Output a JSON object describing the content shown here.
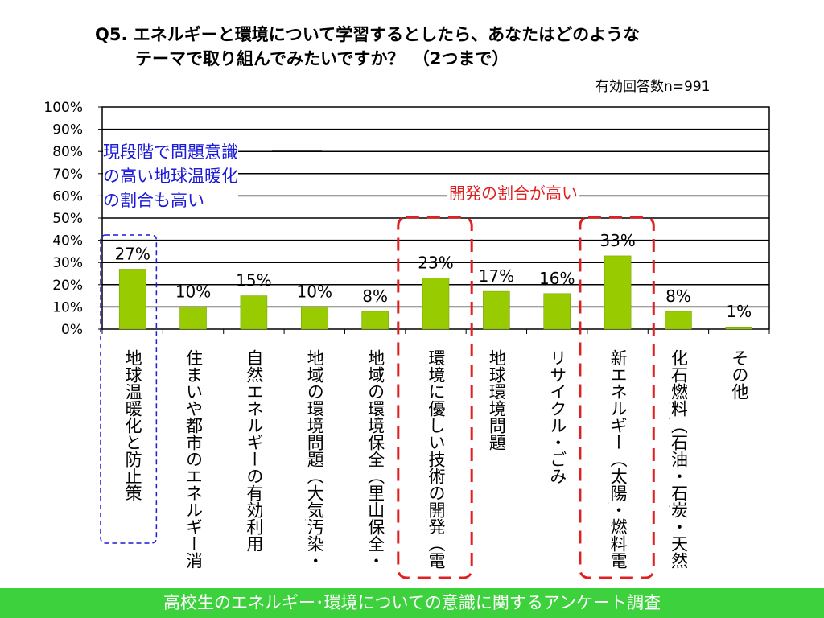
{
  "title_line1": "Q5. エネルギーと環境について学習するとしたら、あなたはどのような",
  "title_line2": "テーマで取り組んでみたいですか？　（2つまで）",
  "sample_size": "有効回答数n=991",
  "annotation_blue": [
    "現段階で問題意識",
    "の高い地球温暖化",
    "の割合も高い"
  ],
  "annotation_red": "開発の割合が高い",
  "footer": "高校生のエネルギー･環境についての意識に関するアンケート調査",
  "colors": {
    "bar": "#99cc00",
    "bar_edge": "#669900",
    "blue": "#1a1ad8",
    "red": "#e02020",
    "footer": "#3dd13d"
  },
  "chart_data": {
    "type": "bar",
    "categories": [
      "地球温暖化と防止策",
      "住まいや都市のエネルギー消費と省エネルギー",
      "自然エネルギーの有効利用",
      "地域の環境問題（大気汚染・ヒートアイランドなど）",
      "地域の環境保全（里山保全・河川浄化など）",
      "環境に優しい技術の開発（電気自動車・リサイクル）",
      "地球環境問題",
      "リサイクル・ごみ",
      "新エネルギー（太陽・燃料電池・バイオマスなど）",
      "化石燃料（石油・石炭・天然ガスなど）の利用と枯渇",
      "その他"
    ],
    "values": [
      27,
      10,
      15,
      10,
      8,
      23,
      17,
      16,
      33,
      8,
      1
    ],
    "data_labels": [
      "27%",
      "10%",
      "15%",
      "10%",
      "8%",
      "23%",
      "17%",
      "16%",
      "33%",
      "8%",
      "1%"
    ],
    "ylim": [
      0,
      100
    ],
    "y_ticks": [
      "0%",
      "10%",
      "20%",
      "30%",
      "40%",
      "50%",
      "60%",
      "70%",
      "80%",
      "90%",
      "100%"
    ],
    "grid": true,
    "highlight_blue": [
      0
    ],
    "highlight_red": [
      5,
      8
    ]
  }
}
